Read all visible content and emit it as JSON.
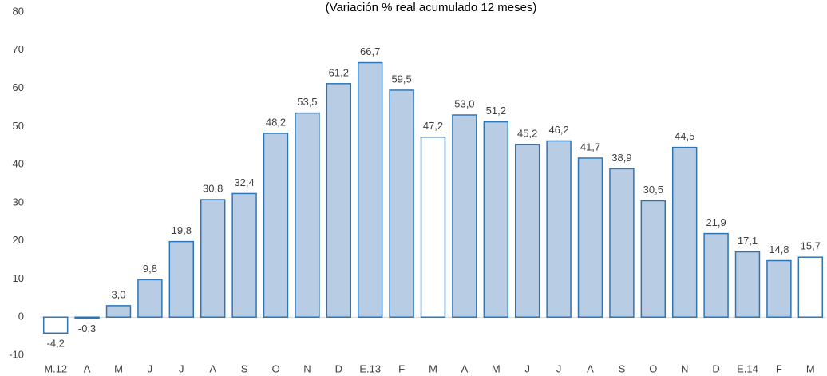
{
  "chart_data": {
    "type": "bar",
    "title": "(Variación % real acumulado 12 meses)",
    "categories": [
      "M.12",
      "A",
      "M",
      "J",
      "J",
      "A",
      "S",
      "O",
      "N",
      "D",
      "E.13",
      "F",
      "M",
      "A",
      "M",
      "J",
      "J",
      "A",
      "S",
      "O",
      "N",
      "D",
      "E.14",
      "F",
      "M"
    ],
    "values": [
      -4.2,
      -0.3,
      3.0,
      9.8,
      19.8,
      30.8,
      32.4,
      48.2,
      53.5,
      61.2,
      66.7,
      59.5,
      47.2,
      53.0,
      51.2,
      45.2,
      46.2,
      41.7,
      38.9,
      30.5,
      44.5,
      21.9,
      17.1,
      14.8,
      15.7
    ],
    "value_labels": [
      "-4,2",
      "-0,3",
      "3,0",
      "9,8",
      "19,8",
      "30,8",
      "32,4",
      "48,2",
      "53,5",
      "61,2",
      "66,7",
      "59,5",
      "47,2",
      "53,0",
      "51,2",
      "45,2",
      "46,2",
      "41,7",
      "38,9",
      "30,5",
      "44,5",
      "21,9",
      "17,1",
      "14,8",
      "15,7"
    ],
    "colors": [
      "#ffffff",
      "#b8cce4",
      "#b8cce4",
      "#b8cce4",
      "#b8cce4",
      "#b8cce4",
      "#b8cce4",
      "#b8cce4",
      "#b8cce4",
      "#b8cce4",
      "#b8cce4",
      "#b8cce4",
      "#ffffff",
      "#b8cce4",
      "#b8cce4",
      "#b8cce4",
      "#b8cce4",
      "#b8cce4",
      "#b8cce4",
      "#b8cce4",
      "#b8cce4",
      "#b8cce4",
      "#b8cce4",
      "#b8cce4",
      "#ffffff"
    ],
    "edge_color": "#2e75b6",
    "ylim": [
      -10,
      80
    ],
    "yticks": [
      -10,
      0,
      10,
      20,
      30,
      40,
      50,
      60,
      70,
      80
    ],
    "grid": false
  }
}
